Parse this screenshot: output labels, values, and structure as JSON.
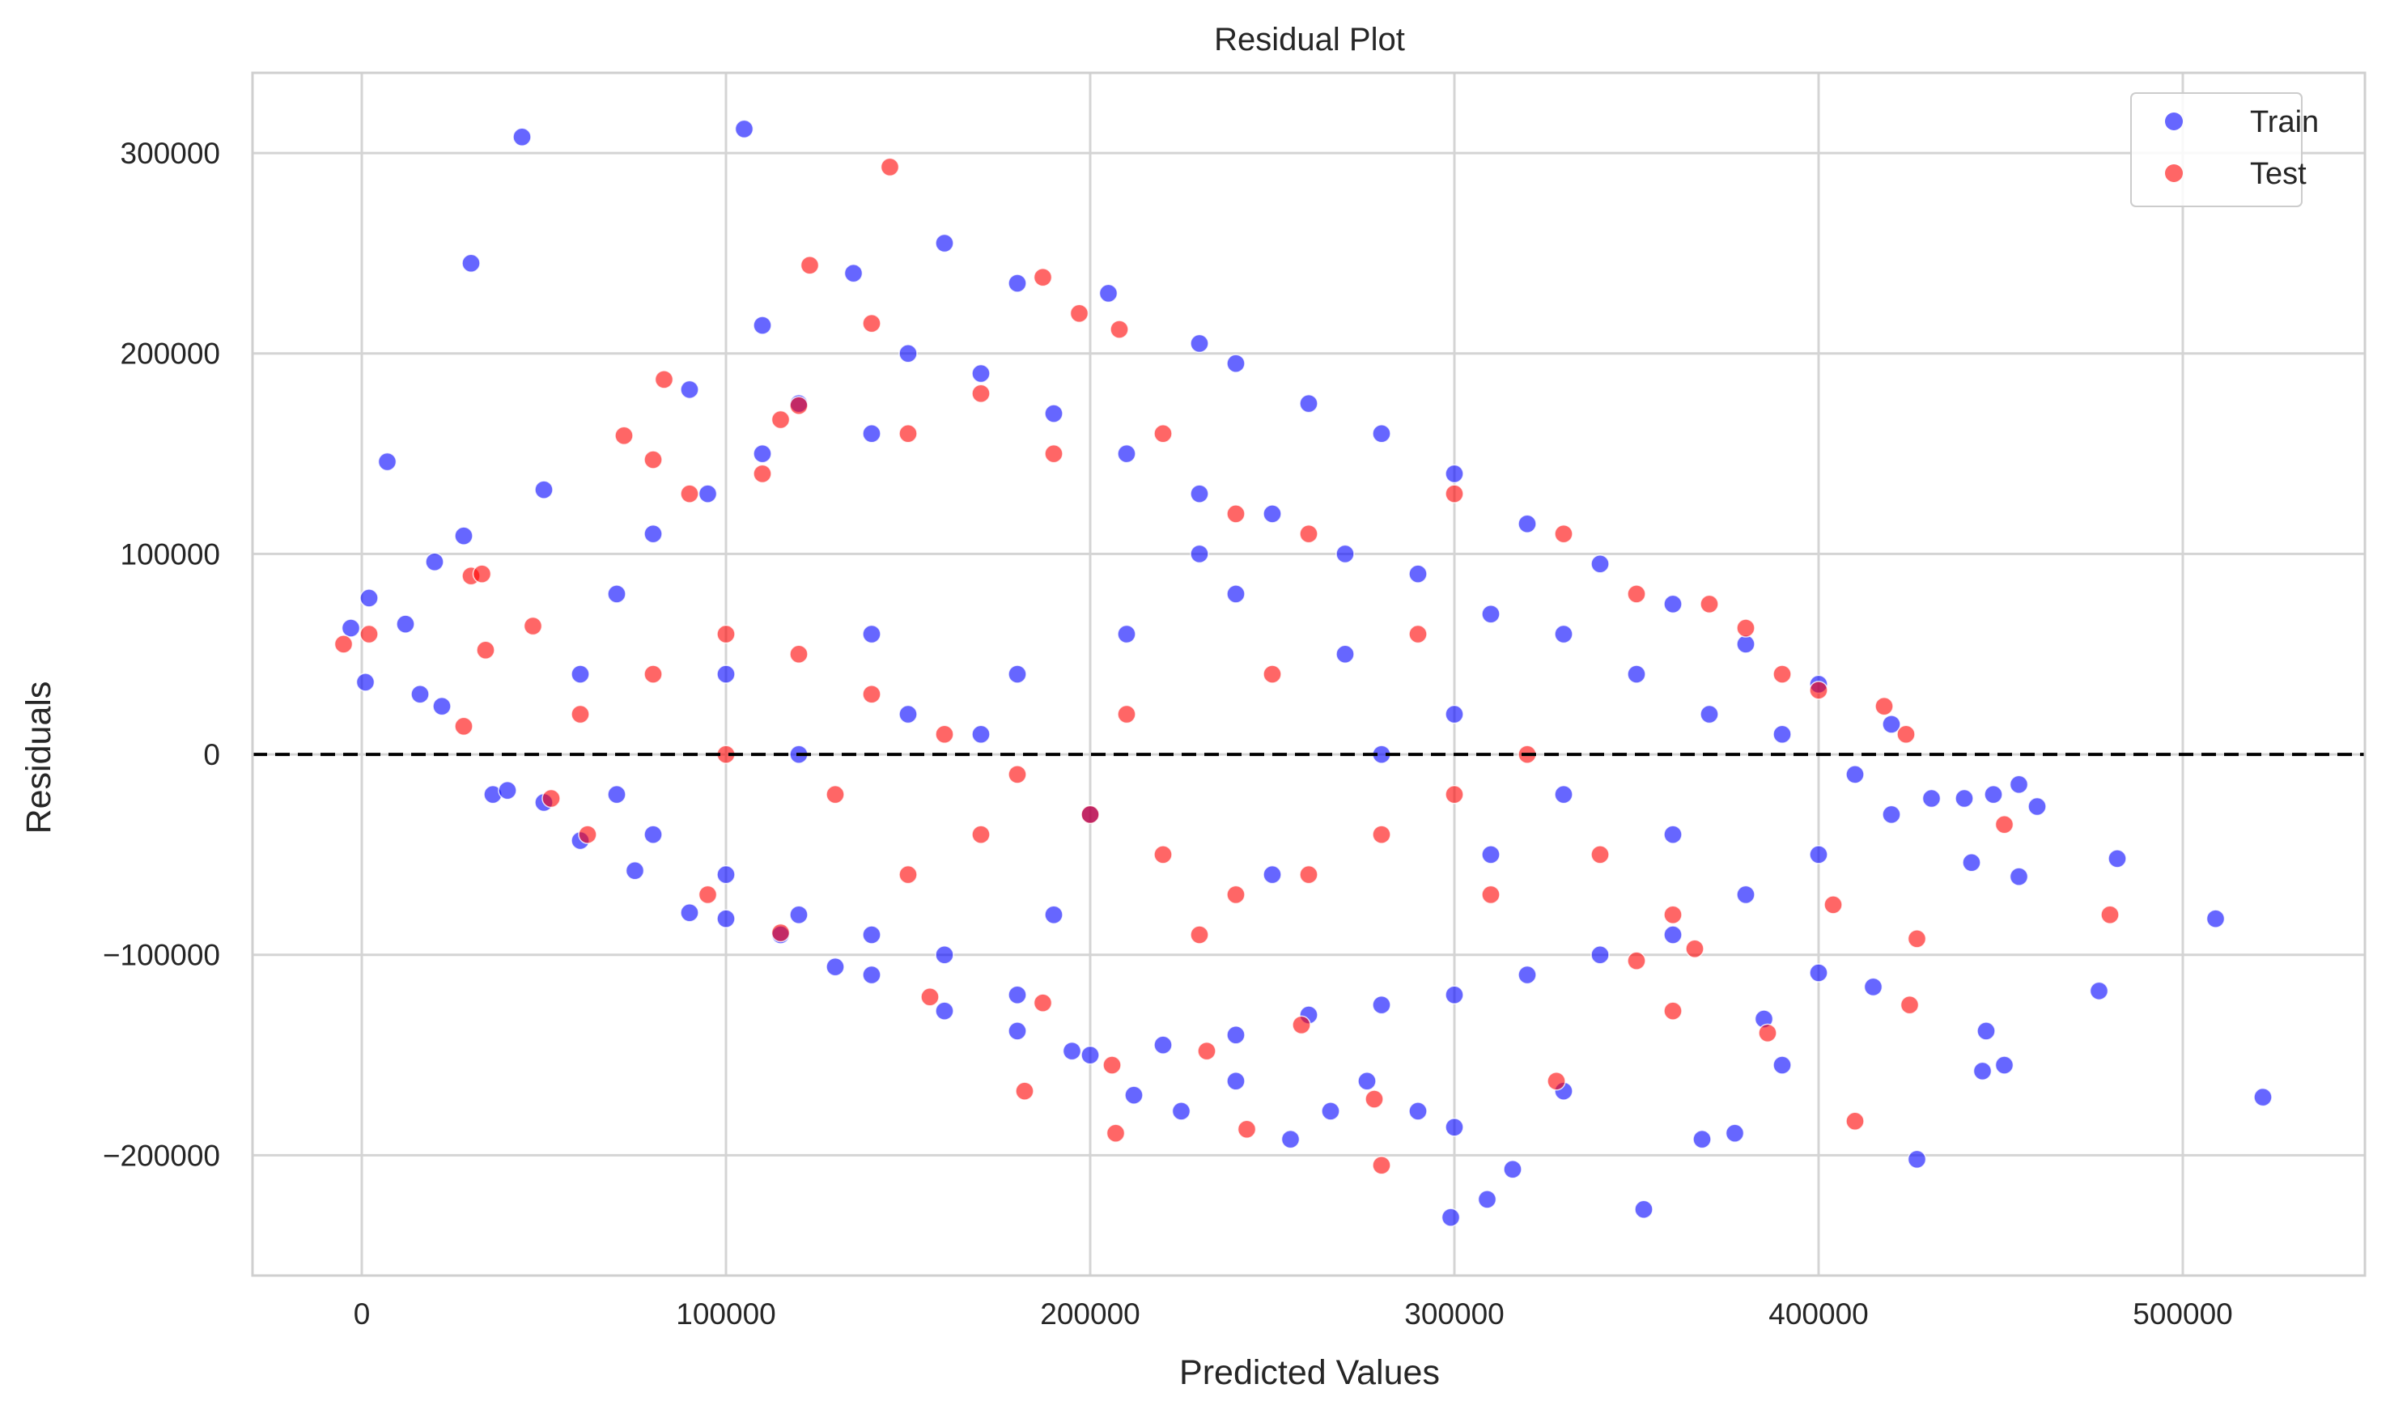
{
  "chart_data": {
    "type": "scatter",
    "title": "Residual Plot",
    "xlabel": "Predicted Values",
    "ylabel": "Residuals",
    "xlim": [
      -30000,
      550000
    ],
    "ylim": [
      -260000,
      340000
    ],
    "xticks": [
      0,
      100000,
      200000,
      300000,
      400000,
      500000
    ],
    "xtick_labels": [
      "0",
      "100000",
      "200000",
      "300000",
      "400000",
      "500000"
    ],
    "yticks": [
      -200000,
      -100000,
      0,
      100000,
      200000,
      300000
    ],
    "ytick_labels": [
      "−200000",
      "−100000",
      "0",
      "100000",
      "200000",
      "300000"
    ],
    "grid": true,
    "legend_position": "top-right",
    "reference_line": {
      "y": 0,
      "style": "dashed",
      "color": "#000000"
    },
    "colors": {
      "train": "#0000ff",
      "test": "#ff0000"
    },
    "series": [
      {
        "name": "Train",
        "color": "#0000ff",
        "alpha": 0.6,
        "points": [
          [
            44000,
            308000
          ],
          [
            105000,
            312000
          ],
          [
            30000,
            245000
          ],
          [
            160000,
            255000
          ],
          [
            7000,
            146000
          ],
          [
            -3000,
            63000
          ],
          [
            1000,
            36000
          ],
          [
            2000,
            78000
          ],
          [
            12000,
            65000
          ],
          [
            20000,
            96000
          ],
          [
            28000,
            109000
          ],
          [
            50000,
            132000
          ],
          [
            16000,
            30000
          ],
          [
            22000,
            24000
          ],
          [
            36000,
            -20000
          ],
          [
            40000,
            -18000
          ],
          [
            90000,
            182000
          ],
          [
            110000,
            214000
          ],
          [
            135000,
            240000
          ],
          [
            150000,
            200000
          ],
          [
            180000,
            235000
          ],
          [
            205000,
            230000
          ],
          [
            230000,
            205000
          ],
          [
            240000,
            195000
          ],
          [
            260000,
            175000
          ],
          [
            280000,
            160000
          ],
          [
            300000,
            140000
          ],
          [
            320000,
            115000
          ],
          [
            340000,
            95000
          ],
          [
            360000,
            75000
          ],
          [
            380000,
            55000
          ],
          [
            400000,
            35000
          ],
          [
            420000,
            15000
          ],
          [
            431000,
            -22000
          ],
          [
            440000,
            -22000
          ],
          [
            448000,
            -20000
          ],
          [
            455000,
            -15000
          ],
          [
            460000,
            -26000
          ],
          [
            442000,
            -54000
          ],
          [
            455000,
            -61000
          ],
          [
            482000,
            -52000
          ],
          [
            509000,
            -82000
          ],
          [
            477000,
            -118000
          ],
          [
            522000,
            -171000
          ],
          [
            446000,
            -138000
          ],
          [
            445000,
            -158000
          ],
          [
            451000,
            -155000
          ],
          [
            427000,
            -202000
          ],
          [
            415000,
            -116000
          ],
          [
            400000,
            -109000
          ],
          [
            390000,
            -155000
          ],
          [
            385000,
            -132000
          ],
          [
            377000,
            -189000
          ],
          [
            368000,
            -192000
          ],
          [
            352000,
            -227000
          ],
          [
            330000,
            -168000
          ],
          [
            316000,
            -207000
          ],
          [
            309000,
            -222000
          ],
          [
            299000,
            -231000
          ],
          [
            300000,
            -186000
          ],
          [
            290000,
            -178000
          ],
          [
            276000,
            -163000
          ],
          [
            266000,
            -178000
          ],
          [
            255000,
            -192000
          ],
          [
            240000,
            -163000
          ],
          [
            225000,
            -178000
          ],
          [
            212000,
            -170000
          ],
          [
            195000,
            -148000
          ],
          [
            180000,
            -138000
          ],
          [
            160000,
            -128000
          ],
          [
            140000,
            -110000
          ],
          [
            130000,
            -106000
          ],
          [
            115000,
            -90000
          ],
          [
            100000,
            -82000
          ],
          [
            90000,
            -79000
          ],
          [
            75000,
            -58000
          ],
          [
            60000,
            -43000
          ],
          [
            50000,
            -24000
          ],
          [
            60000,
            40000
          ],
          [
            70000,
            80000
          ],
          [
            80000,
            110000
          ],
          [
            95000,
            130000
          ],
          [
            110000,
            150000
          ],
          [
            120000,
            175000
          ],
          [
            140000,
            160000
          ],
          [
            170000,
            190000
          ],
          [
            190000,
            170000
          ],
          [
            210000,
            150000
          ],
          [
            230000,
            130000
          ],
          [
            250000,
            120000
          ],
          [
            270000,
            100000
          ],
          [
            290000,
            90000
          ],
          [
            310000,
            70000
          ],
          [
            330000,
            60000
          ],
          [
            350000,
            40000
          ],
          [
            370000,
            20000
          ],
          [
            390000,
            10000
          ],
          [
            410000,
            -10000
          ],
          [
            420000,
            -30000
          ],
          [
            400000,
            -50000
          ],
          [
            380000,
            -70000
          ],
          [
            360000,
            -90000
          ],
          [
            340000,
            -100000
          ],
          [
            320000,
            -110000
          ],
          [
            300000,
            -120000
          ],
          [
            280000,
            -125000
          ],
          [
            260000,
            -130000
          ],
          [
            240000,
            -140000
          ],
          [
            220000,
            -145000
          ],
          [
            200000,
            -150000
          ],
          [
            180000,
            -120000
          ],
          [
            160000,
            -100000
          ],
          [
            140000,
            -90000
          ],
          [
            120000,
            -80000
          ],
          [
            100000,
            -60000
          ],
          [
            80000,
            -40000
          ],
          [
            70000,
            -20000
          ],
          [
            120000,
            0
          ],
          [
            150000,
            20000
          ],
          [
            180000,
            40000
          ],
          [
            210000,
            60000
          ],
          [
            240000,
            80000
          ],
          [
            270000,
            50000
          ],
          [
            300000,
            20000
          ],
          [
            330000,
            -20000
          ],
          [
            360000,
            -40000
          ],
          [
            250000,
            -60000
          ],
          [
            200000,
            -30000
          ],
          [
            170000,
            10000
          ],
          [
            140000,
            60000
          ],
          [
            230000,
            100000
          ],
          [
            280000,
            0
          ],
          [
            310000,
            -50000
          ],
          [
            190000,
            -80000
          ],
          [
            100000,
            40000
          ]
        ]
      },
      {
        "name": "Test",
        "color": "#ff0000",
        "alpha": 0.6,
        "points": [
          [
            145000,
            293000
          ],
          [
            -5000,
            55000
          ],
          [
            2000,
            60000
          ],
          [
            30000,
            89000
          ],
          [
            33000,
            90000
          ],
          [
            34000,
            52000
          ],
          [
            47000,
            64000
          ],
          [
            28000,
            14000
          ],
          [
            123000,
            244000
          ],
          [
            187000,
            238000
          ],
          [
            197000,
            220000
          ],
          [
            208000,
            212000
          ],
          [
            80000,
            147000
          ],
          [
            83000,
            187000
          ],
          [
            72000,
            159000
          ],
          [
            115000,
            167000
          ],
          [
            120000,
            174000
          ],
          [
            140000,
            215000
          ],
          [
            380000,
            63000
          ],
          [
            400000,
            32000
          ],
          [
            418000,
            24000
          ],
          [
            424000,
            10000
          ],
          [
            451000,
            -35000
          ],
          [
            480000,
            -80000
          ],
          [
            427000,
            -92000
          ],
          [
            425000,
            -125000
          ],
          [
            410000,
            -183000
          ],
          [
            404000,
            -75000
          ],
          [
            386000,
            -139000
          ],
          [
            366000,
            -97000
          ],
          [
            360000,
            -128000
          ],
          [
            350000,
            -103000
          ],
          [
            328000,
            -163000
          ],
          [
            280000,
            -205000
          ],
          [
            278000,
            -172000
          ],
          [
            243000,
            -187000
          ],
          [
            207000,
            -189000
          ],
          [
            182000,
            -168000
          ],
          [
            258000,
            -135000
          ],
          [
            232000,
            -148000
          ],
          [
            206000,
            -155000
          ],
          [
            187000,
            -124000
          ],
          [
            156000,
            -121000
          ],
          [
            115000,
            -89000
          ],
          [
            95000,
            -70000
          ],
          [
            62000,
            -40000
          ],
          [
            52000,
            -22000
          ],
          [
            90000,
            130000
          ],
          [
            110000,
            140000
          ],
          [
            150000,
            160000
          ],
          [
            170000,
            180000
          ],
          [
            190000,
            150000
          ],
          [
            220000,
            160000
          ],
          [
            240000,
            120000
          ],
          [
            260000,
            110000
          ],
          [
            300000,
            130000
          ],
          [
            330000,
            110000
          ],
          [
            350000,
            80000
          ],
          [
            370000,
            75000
          ],
          [
            390000,
            40000
          ],
          [
            60000,
            20000
          ],
          [
            80000,
            40000
          ],
          [
            100000,
            60000
          ],
          [
            120000,
            50000
          ],
          [
            140000,
            30000
          ],
          [
            160000,
            10000
          ],
          [
            180000,
            -10000
          ],
          [
            200000,
            -30000
          ],
          [
            220000,
            -50000
          ],
          [
            240000,
            -70000
          ],
          [
            260000,
            -60000
          ],
          [
            280000,
            -40000
          ],
          [
            300000,
            -20000
          ],
          [
            320000,
            0
          ],
          [
            340000,
            -50000
          ],
          [
            360000,
            -80000
          ],
          [
            100000,
            0
          ],
          [
            130000,
            -20000
          ],
          [
            170000,
            -40000
          ],
          [
            210000,
            20000
          ],
          [
            250000,
            40000
          ],
          [
            290000,
            60000
          ],
          [
            310000,
            -70000
          ],
          [
            230000,
            -90000
          ],
          [
            150000,
            -60000
          ]
        ]
      }
    ]
  }
}
